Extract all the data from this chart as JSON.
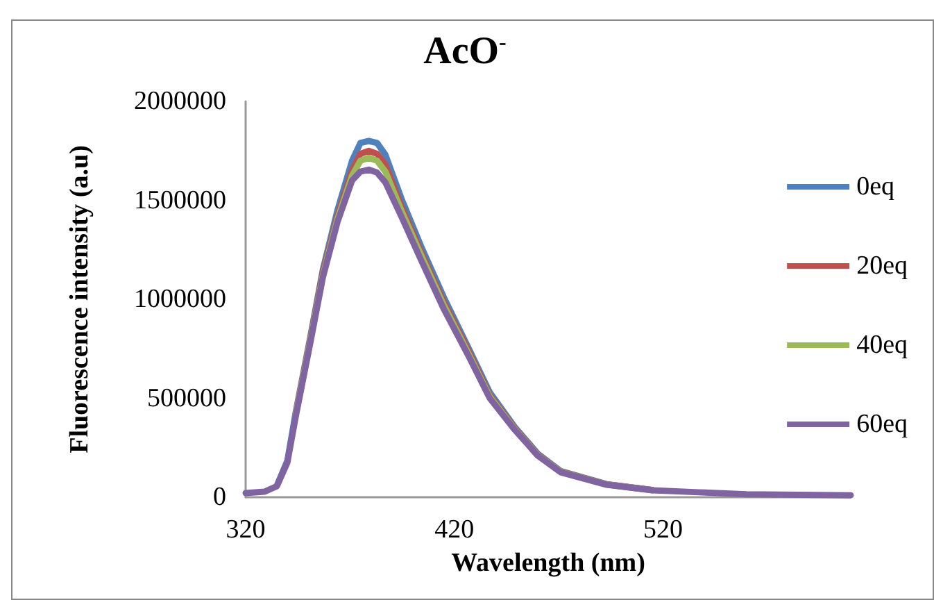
{
  "chart_data": {
    "type": "line",
    "title": "AcO$^{-}$",
    "xlabel": "Wavelength (nm)",
    "ylabel": "Fluorescence intensity (a.u)",
    "x": [
      320,
      329,
      335,
      340,
      344,
      351,
      357,
      364,
      371,
      375,
      379,
      383,
      387,
      395,
      404,
      415,
      427,
      437,
      449,
      460,
      471,
      493,
      515,
      537,
      560,
      585,
      610
    ],
    "series": [
      {
        "name": "0eq",
        "color": "#4f81bd",
        "values": [
          null,
          null,
          60000,
          185000,
          430000,
          810000,
          1150000,
          1450000,
          1700000,
          1790000,
          1800000,
          1790000,
          1730000,
          1500000,
          1270000,
          1010000,
          750000,
          530000,
          355000,
          220000,
          132000,
          66000,
          37000,
          null,
          null,
          null,
          null
        ]
      },
      {
        "name": "20eq",
        "color": "#c0504d",
        "values": [
          null,
          null,
          null,
          null,
          420000,
          800000,
          1135000,
          1420000,
          1650000,
          1735000,
          1750000,
          1735000,
          1680000,
          1460000,
          1240000,
          985000,
          735000,
          515000,
          348000,
          215000,
          130000,
          65000,
          36000,
          null,
          null,
          null,
          null
        ]
      },
      {
        "name": "40eq",
        "color": "#9bbb59",
        "values": [
          null,
          null,
          null,
          null,
          415000,
          790000,
          1120000,
          1405000,
          1625000,
          1700000,
          1715000,
          1700000,
          1645000,
          1440000,
          1225000,
          970000,
          722000,
          508000,
          344000,
          212000,
          128000,
          64000,
          35000,
          null,
          null,
          null,
          null
        ]
      },
      {
        "name": "60eq",
        "color": "#8064a2",
        "values": [
          21000,
          28000,
          56000,
          175000,
          407000,
          780000,
          1110000,
          1390000,
          1600000,
          1645000,
          1655000,
          1640000,
          1590000,
          1410000,
          1200000,
          950000,
          710000,
          500000,
          340000,
          210000,
          126000,
          63000,
          35000,
          25000,
          15000,
          12000,
          10000
        ]
      }
    ],
    "xlim": [
      320,
      610
    ],
    "xticks": [
      320,
      420,
      520
    ],
    "ylim": [
      0,
      2000000
    ],
    "yticks": [
      0,
      500000,
      1000000,
      1500000,
      2000000
    ],
    "grid": false,
    "legend": "right",
    "marker": "none",
    "line_style": "solid"
  }
}
